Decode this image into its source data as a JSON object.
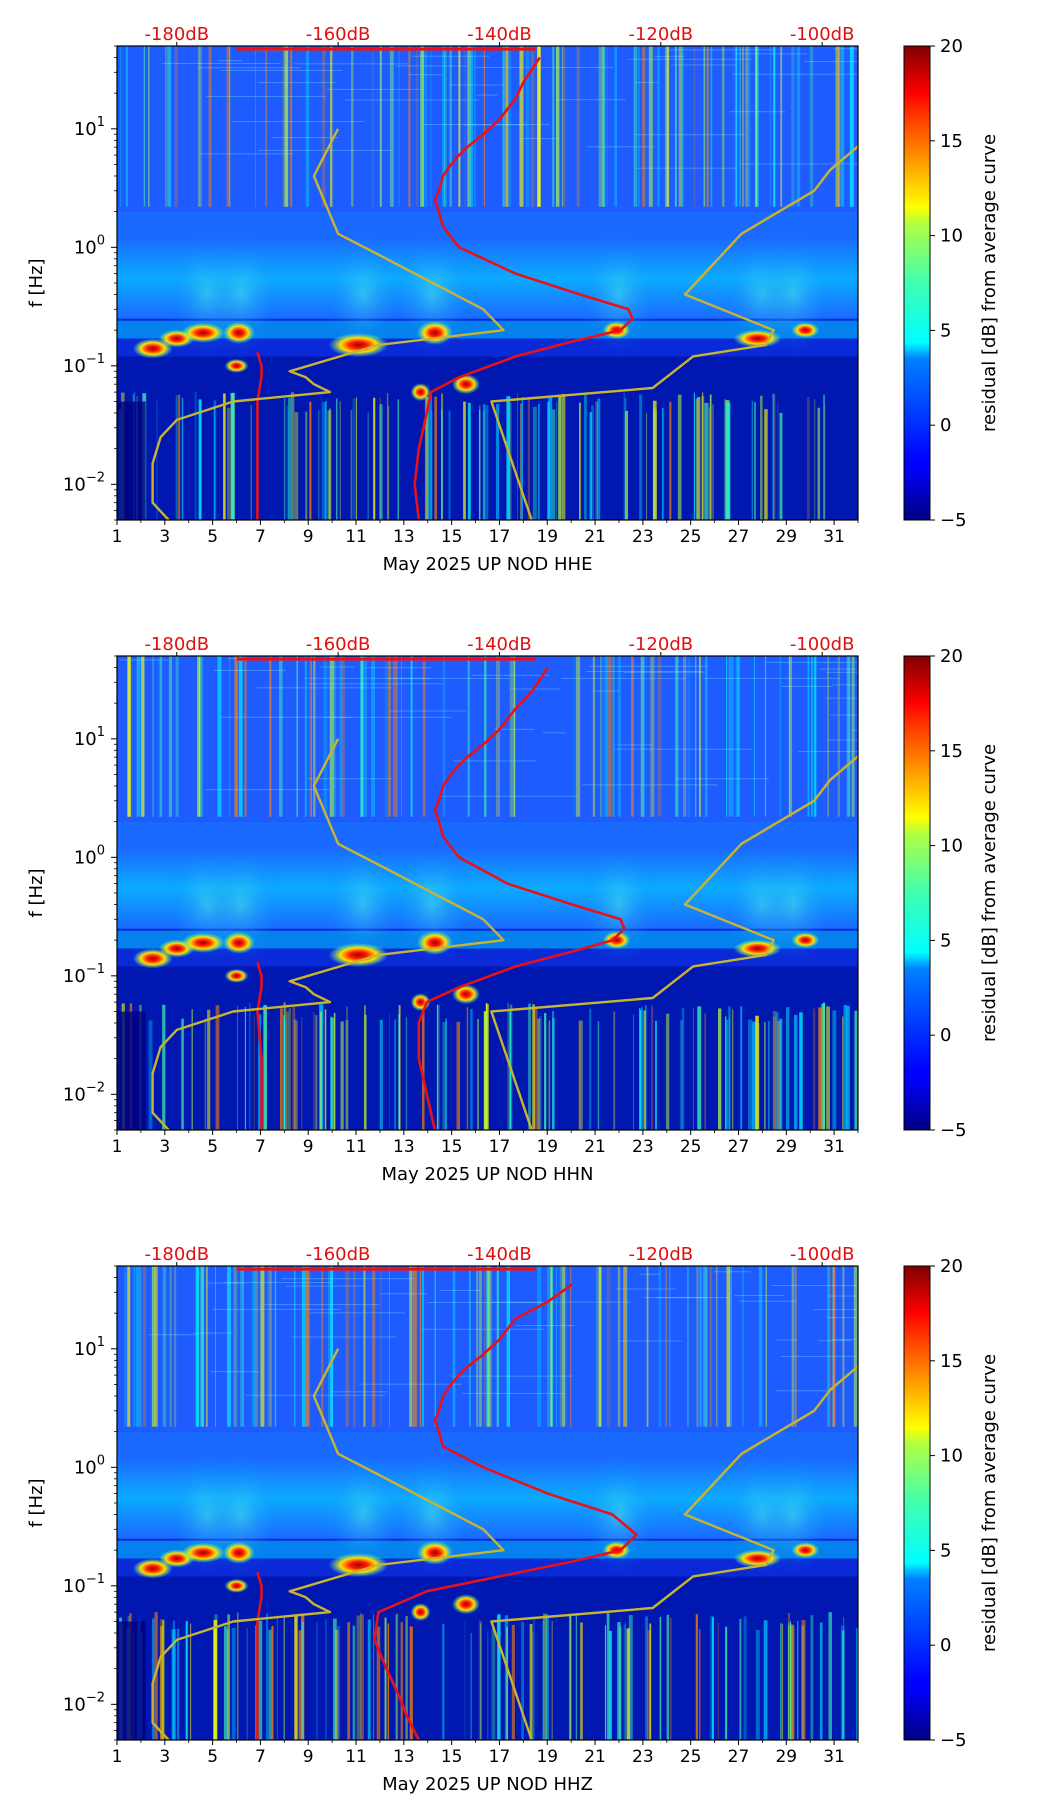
{
  "figure": {
    "colorbar": {
      "label": "residual [dB] from average curve",
      "ticks": [
        20,
        15,
        10,
        5,
        0,
        -5
      ],
      "tick_labels": [
        "20",
        "15",
        "10",
        "5",
        "0",
        "−5"
      ],
      "range": [
        -5,
        20
      ],
      "colormap": "jet"
    },
    "colors": {
      "median_curve": "#e8111b",
      "noise_model": "#c8b430",
      "top_labels": "#e01010",
      "background_low": "#000080",
      "background_mid": "#1060ff"
    }
  },
  "chart_data": [
    {
      "type": "heatmap",
      "xlabel": "May 2025 UP NOD  HHE",
      "ylabel": "f [Hz]",
      "xticks": [
        "1",
        "3",
        "5",
        "7",
        "9",
        "11",
        "13",
        "15",
        "17",
        "19",
        "21",
        "23",
        "25",
        "27",
        "29",
        "31"
      ],
      "xlim": [
        1,
        32
      ],
      "yscale": "log",
      "ylim": [
        0.005,
        50
      ],
      "yticks": [
        {
          "value": 0.01,
          "base": "10",
          "exp": "−2"
        },
        {
          "value": 0.1,
          "base": "10",
          "exp": "−1"
        },
        {
          "value": 1,
          "base": "10",
          "exp": "0"
        },
        {
          "value": 10,
          "base": "10",
          "exp": "1"
        }
      ],
      "top_axis_labels": [
        "-180dB",
        "-160dB",
        "-140dB",
        "-120dB",
        "-100dB"
      ],
      "top_axis_db": [
        -180,
        -160,
        -140,
        -120,
        -100
      ],
      "series": [
        {
          "kind": "median",
          "x_db": [
            -170,
            -170,
            -170,
            -169.5,
            -169.5,
            -170
          ],
          "y": [
            0.005,
            0.02,
            0.05,
            0.08,
            0.1,
            0.13
          ]
        },
        {
          "kind": "median",
          "x_db": [
            -150,
            -150.5,
            -150,
            -149,
            -148.5,
            -145,
            -138,
            -131,
            -125,
            -123.5,
            -124,
            -130,
            -138,
            -145,
            -147,
            -147.5,
            -148,
            -147.5,
            -147,
            -146,
            -145,
            -144,
            -142,
            -140,
            -138,
            -137,
            -135
          ],
          "y": [
            0.005,
            0.01,
            0.02,
            0.04,
            0.06,
            0.08,
            0.12,
            0.16,
            0.2,
            0.25,
            0.3,
            0.4,
            0.6,
            1.0,
            1.5,
            2.0,
            2.5,
            3.0,
            4.0,
            5.0,
            6.0,
            7.0,
            9.0,
            12.0,
            18.0,
            25.0,
            40.0
          ]
        },
        {
          "kind": "noise_model",
          "x_db": [
            -181,
            -183,
            -183,
            -182,
            -180,
            -173,
            -161,
            -163,
            -164,
            -166,
            -155,
            -139.5,
            -142,
            -154,
            -160,
            -163,
            -160
          ],
          "y": [
            0.005,
            0.007,
            0.015,
            0.025,
            0.035,
            0.05,
            0.06,
            0.07,
            0.08,
            0.09,
            0.15,
            0.2,
            0.3,
            0.8,
            1.3,
            4,
            10
          ]
        },
        {
          "kind": "noise_model",
          "x_db": [
            -136,
            -141,
            -141,
            -121,
            -116,
            -107,
            -106,
            -117,
            -110,
            -101,
            -99,
            -93
          ],
          "y": [
            0.005,
            0.05,
            0.05,
            0.065,
            0.12,
            0.15,
            0.2,
            0.4,
            1.3,
            3,
            4.5,
            10
          ]
        }
      ]
    },
    {
      "type": "heatmap",
      "xlabel": "May 2025 UP NOD  HHN",
      "ylabel": "f [Hz]",
      "xticks": [
        "1",
        "3",
        "5",
        "7",
        "9",
        "11",
        "13",
        "15",
        "17",
        "19",
        "21",
        "23",
        "25",
        "27",
        "29",
        "31"
      ],
      "xlim": [
        1,
        32
      ],
      "yscale": "log",
      "ylim": [
        0.005,
        50
      ],
      "yticks": [
        {
          "value": 0.01,
          "base": "10",
          "exp": "−2"
        },
        {
          "value": 0.1,
          "base": "10",
          "exp": "−1"
        },
        {
          "value": 1,
          "base": "10",
          "exp": "0"
        },
        {
          "value": 10,
          "base": "10",
          "exp": "1"
        }
      ],
      "top_axis_labels": [
        "-180dB",
        "-160dB",
        "-140dB",
        "-120dB",
        "-100dB"
      ],
      "top_axis_db": [
        -180,
        -160,
        -140,
        -120,
        -100
      ],
      "series": [
        {
          "kind": "median",
          "x_db": [
            -169.5,
            -169.5,
            -170,
            -169.5,
            -169.5,
            -170
          ],
          "y": [
            0.005,
            0.02,
            0.05,
            0.08,
            0.1,
            0.13
          ]
        },
        {
          "kind": "median",
          "x_db": [
            -148,
            -149,
            -150,
            -150,
            -149,
            -145,
            -138,
            -131,
            -126,
            -124.5,
            -125,
            -131,
            -139,
            -145,
            -147,
            -147.5,
            -148,
            -147.5,
            -147,
            -146,
            -145,
            -144,
            -142,
            -140,
            -138,
            -136,
            -134
          ],
          "y": [
            0.005,
            0.01,
            0.02,
            0.04,
            0.06,
            0.08,
            0.12,
            0.16,
            0.2,
            0.25,
            0.3,
            0.4,
            0.6,
            1.0,
            1.5,
            2.0,
            2.5,
            3.0,
            4.0,
            5.0,
            6.0,
            7.0,
            9.0,
            12.0,
            18.0,
            25.0,
            40.0
          ]
        },
        {
          "kind": "noise_model",
          "x_db": [
            -181,
            -183,
            -183,
            -182,
            -180,
            -173,
            -161,
            -163,
            -164,
            -166,
            -155,
            -139.5,
            -142,
            -154,
            -160,
            -163,
            -160
          ],
          "y": [
            0.005,
            0.007,
            0.015,
            0.025,
            0.035,
            0.05,
            0.06,
            0.07,
            0.08,
            0.09,
            0.15,
            0.2,
            0.3,
            0.8,
            1.3,
            4,
            10
          ]
        },
        {
          "kind": "noise_model",
          "x_db": [
            -136,
            -141,
            -141,
            -121,
            -116,
            -107,
            -106,
            -117,
            -110,
            -101,
            -99,
            -93
          ],
          "y": [
            0.005,
            0.05,
            0.05,
            0.065,
            0.12,
            0.15,
            0.2,
            0.4,
            1.3,
            3,
            4.5,
            10
          ]
        }
      ]
    },
    {
      "type": "heatmap",
      "xlabel": "May 2025 UP NOD  HHZ",
      "ylabel": "f [Hz]",
      "xticks": [
        "1",
        "3",
        "5",
        "7",
        "9",
        "11",
        "13",
        "15",
        "17",
        "19",
        "21",
        "23",
        "25",
        "27",
        "29",
        "31"
      ],
      "xlim": [
        1,
        32
      ],
      "yscale": "log",
      "ylim": [
        0.005,
        50
      ],
      "yticks": [
        {
          "value": 0.01,
          "base": "10",
          "exp": "−2"
        },
        {
          "value": 0.1,
          "base": "10",
          "exp": "−1"
        },
        {
          "value": 1,
          "base": "10",
          "exp": "0"
        },
        {
          "value": 10,
          "base": "10",
          "exp": "1"
        }
      ],
      "top_axis_labels": [
        "-180dB",
        "-160dB",
        "-140dB",
        "-120dB",
        "-100dB"
      ],
      "top_axis_db": [
        -180,
        -160,
        -140,
        -120,
        -100
      ],
      "series": [
        {
          "kind": "median",
          "x_db": [
            -170,
            -170,
            -170,
            -169.5,
            -169.5,
            -170
          ],
          "y": [
            0.005,
            0.02,
            0.05,
            0.08,
            0.1,
            0.13
          ]
        },
        {
          "kind": "median",
          "x_db": [
            -150,
            -151.5,
            -152.5,
            -154,
            -155.5,
            -155,
            -149,
            -140,
            -131,
            -125,
            -123,
            -126,
            -134,
            -142,
            -147,
            -147.5,
            -148,
            -147.5,
            -147,
            -146,
            -145,
            -144,
            -142,
            -140,
            -138,
            -134,
            -131
          ],
          "y": [
            0.005,
            0.008,
            0.012,
            0.02,
            0.035,
            0.06,
            0.09,
            0.12,
            0.16,
            0.2,
            0.27,
            0.4,
            0.6,
            1.0,
            1.5,
            2.0,
            2.5,
            3.0,
            4.0,
            5.0,
            6.0,
            7.0,
            9.0,
            12.0,
            18.0,
            25.0,
            35.0
          ]
        },
        {
          "kind": "noise_model",
          "x_db": [
            -181,
            -183,
            -183,
            -182,
            -180,
            -173,
            -161,
            -163,
            -164,
            -166,
            -155,
            -139.5,
            -142,
            -154,
            -160,
            -163,
            -160
          ],
          "y": [
            0.005,
            0.007,
            0.015,
            0.025,
            0.035,
            0.05,
            0.06,
            0.07,
            0.08,
            0.09,
            0.15,
            0.2,
            0.3,
            0.8,
            1.3,
            4,
            10
          ]
        },
        {
          "kind": "noise_model",
          "x_db": [
            -136,
            -141,
            -141,
            -121,
            -116,
            -107,
            -106,
            -117,
            -110,
            -101,
            -99,
            -93
          ],
          "y": [
            0.005,
            0.05,
            0.05,
            0.065,
            0.12,
            0.15,
            0.2,
            0.4,
            1.3,
            3,
            4.5,
            10
          ]
        }
      ]
    }
  ]
}
